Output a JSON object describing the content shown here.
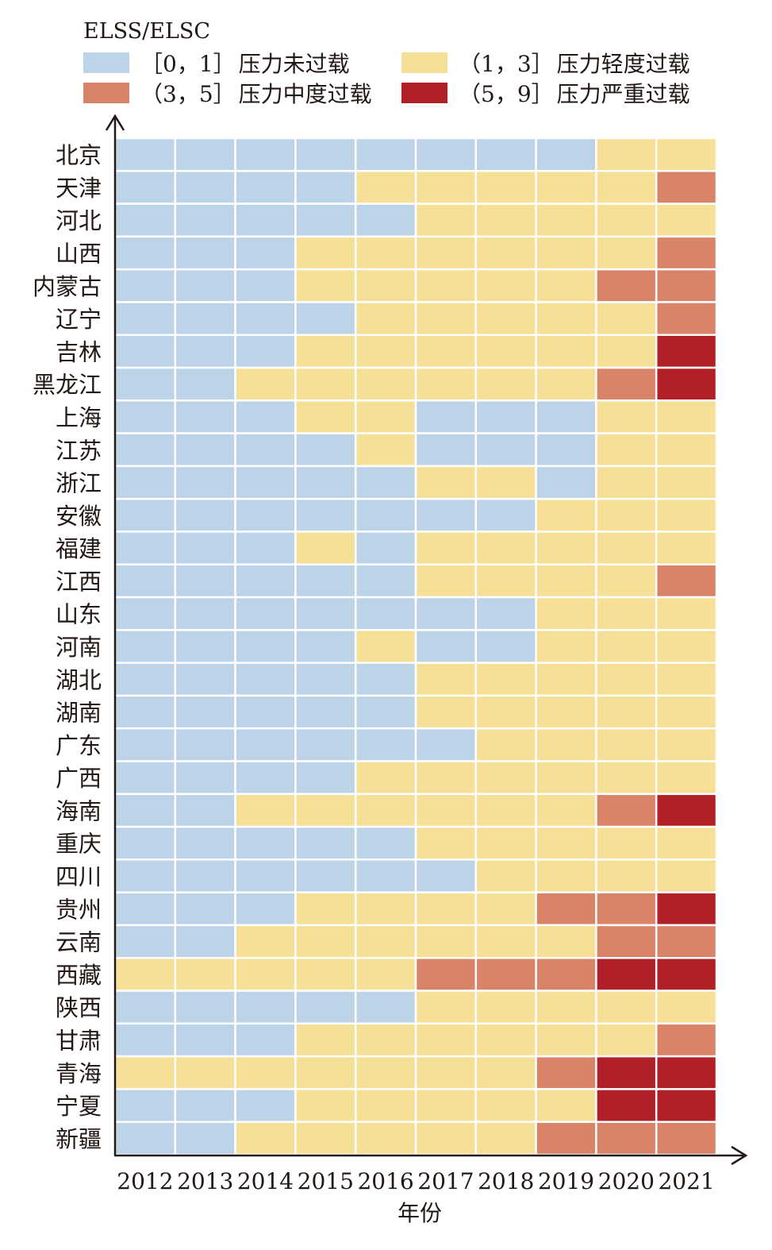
{
  "chart_data": {
    "type": "heatmap",
    "title": "ELSS/ELSC",
    "xlabel": "年份",
    "ylabel": "",
    "x": [
      "2012",
      "2013",
      "2014",
      "2015",
      "2016",
      "2017",
      "2018",
      "2019",
      "2020",
      "2021"
    ],
    "y": [
      "北京",
      "天津",
      "河北",
      "山西",
      "内蒙古",
      "辽宁",
      "吉林",
      "黑龙江",
      "上海",
      "江苏",
      "浙江",
      "安徽",
      "福建",
      "江西",
      "山东",
      "河南",
      "湖北",
      "湖南",
      "广东",
      "广西",
      "海南",
      "重庆",
      "四川",
      "贵州",
      "云南",
      "西藏",
      "陕西",
      "甘肃",
      "青海",
      "宁夏",
      "新疆"
    ],
    "legend_position": "top",
    "legend": [
      {
        "level": 0,
        "range": "［0，1］",
        "label": "压力未过载",
        "color": "#bcd3e8"
      },
      {
        "level": 1,
        "range": "（1，3］",
        "label": "压力轻度过载",
        "color": "#f6df97"
      },
      {
        "level": 2,
        "range": "（3，5］",
        "label": "压力中度过载",
        "color": "#d98368"
      },
      {
        "level": 3,
        "range": "（5，9］",
        "label": "压力严重过载",
        "color": "#b11f27"
      }
    ],
    "levels": [
      [
        0,
        0,
        0,
        0,
        0,
        0,
        0,
        0,
        1,
        1
      ],
      [
        0,
        0,
        0,
        0,
        1,
        1,
        1,
        1,
        1,
        2
      ],
      [
        0,
        0,
        0,
        0,
        0,
        1,
        1,
        1,
        1,
        1
      ],
      [
        0,
        0,
        0,
        1,
        1,
        1,
        1,
        1,
        1,
        2
      ],
      [
        0,
        0,
        0,
        1,
        1,
        1,
        1,
        1,
        2,
        2
      ],
      [
        0,
        0,
        0,
        0,
        1,
        1,
        1,
        1,
        1,
        2
      ],
      [
        0,
        0,
        0,
        1,
        1,
        1,
        1,
        1,
        1,
        3
      ],
      [
        0,
        0,
        1,
        1,
        1,
        1,
        1,
        1,
        2,
        3
      ],
      [
        0,
        0,
        0,
        1,
        1,
        0,
        0,
        0,
        1,
        1
      ],
      [
        0,
        0,
        0,
        0,
        1,
        0,
        0,
        0,
        1,
        1
      ],
      [
        0,
        0,
        0,
        0,
        0,
        1,
        1,
        0,
        1,
        1
      ],
      [
        0,
        0,
        0,
        0,
        0,
        0,
        0,
        1,
        1,
        1
      ],
      [
        0,
        0,
        0,
        1,
        0,
        1,
        1,
        1,
        1,
        1
      ],
      [
        0,
        0,
        0,
        0,
        0,
        1,
        1,
        1,
        1,
        2
      ],
      [
        0,
        0,
        0,
        0,
        0,
        0,
        0,
        1,
        1,
        1
      ],
      [
        0,
        0,
        0,
        0,
        1,
        0,
        0,
        1,
        1,
        1
      ],
      [
        0,
        0,
        0,
        0,
        0,
        1,
        1,
        1,
        1,
        1
      ],
      [
        0,
        0,
        0,
        0,
        0,
        1,
        1,
        1,
        1,
        1
      ],
      [
        0,
        0,
        0,
        0,
        0,
        0,
        1,
        1,
        1,
        1
      ],
      [
        0,
        0,
        0,
        0,
        1,
        1,
        1,
        1,
        1,
        1
      ],
      [
        0,
        0,
        1,
        1,
        1,
        1,
        1,
        1,
        2,
        3
      ],
      [
        0,
        0,
        0,
        0,
        0,
        1,
        1,
        1,
        1,
        1
      ],
      [
        0,
        0,
        0,
        0,
        0,
        0,
        1,
        1,
        1,
        1
      ],
      [
        0,
        0,
        0,
        1,
        1,
        1,
        1,
        2,
        2,
        3
      ],
      [
        0,
        0,
        1,
        1,
        1,
        1,
        1,
        1,
        2,
        2
      ],
      [
        1,
        1,
        1,
        1,
        1,
        2,
        2,
        2,
        3,
        3
      ],
      [
        0,
        0,
        0,
        0,
        0,
        1,
        1,
        1,
        1,
        1
      ],
      [
        0,
        0,
        0,
        1,
        1,
        1,
        1,
        1,
        1,
        2
      ],
      [
        1,
        1,
        1,
        1,
        1,
        1,
        1,
        2,
        3,
        3
      ],
      [
        0,
        0,
        0,
        1,
        1,
        1,
        1,
        1,
        3,
        3
      ],
      [
        0,
        0,
        1,
        1,
        1,
        1,
        1,
        2,
        2,
        2
      ]
    ],
    "grid": true
  }
}
